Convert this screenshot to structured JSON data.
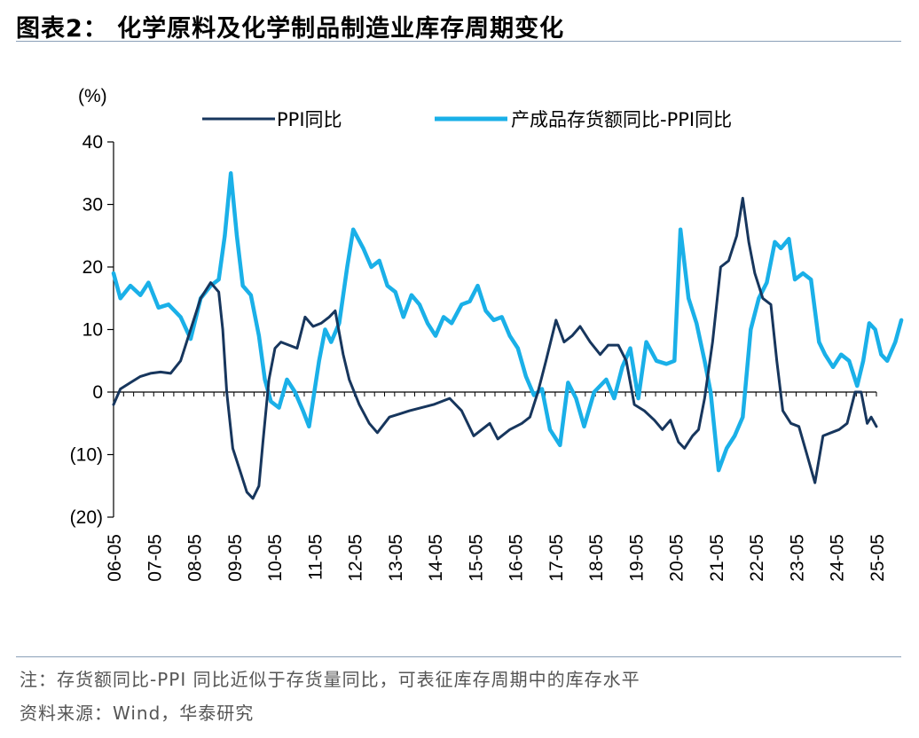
{
  "header": {
    "title": "图表2：  化学原料及化学制品制造业库存周期变化"
  },
  "footer": {
    "note": "注：存货额同比-PPI 同比近似于存货量同比，可表征库存周期中的库存水平",
    "source": "资料来源：Wind，华泰研究"
  },
  "chart_data": {
    "type": "line",
    "unit_label": "(%)",
    "ylim": [
      -20,
      40
    ],
    "yticks": [
      40,
      30,
      20,
      10,
      0,
      -10,
      -20
    ],
    "ytick_labels": [
      "40",
      "30",
      "20",
      "10",
      "0",
      "(10)",
      "(20)"
    ],
    "xlim": [
      2006.33,
      2025.33
    ],
    "xtick_labels": [
      "06-05",
      "07-05",
      "08-05",
      "09-05",
      "10-05",
      "11-05",
      "12-05",
      "13-05",
      "14-05",
      "15-05",
      "16-05",
      "17-05",
      "18-05",
      "19-05",
      "20-05",
      "21-05",
      "22-05",
      "23-05",
      "24-05",
      "25-05"
    ],
    "legend_position": "top",
    "colors": {
      "series1": "#17365d",
      "series2": "#1ab0e8"
    },
    "series": [
      {
        "name": "PPI同比",
        "points": [
          [
            2006.33,
            -2
          ],
          [
            2006.5,
            0.5
          ],
          [
            2006.75,
            1.5
          ],
          [
            2007.0,
            2.5
          ],
          [
            2007.25,
            3
          ],
          [
            2007.5,
            3.2
          ],
          [
            2007.75,
            3
          ],
          [
            2008.0,
            5
          ],
          [
            2008.25,
            10
          ],
          [
            2008.5,
            15
          ],
          [
            2008.75,
            17.5
          ],
          [
            2008.95,
            16
          ],
          [
            2009.05,
            10
          ],
          [
            2009.15,
            0
          ],
          [
            2009.3,
            -9
          ],
          [
            2009.5,
            -13
          ],
          [
            2009.65,
            -16
          ],
          [
            2009.8,
            -17
          ],
          [
            2009.95,
            -15
          ],
          [
            2010.05,
            -8
          ],
          [
            2010.2,
            2
          ],
          [
            2010.35,
            7
          ],
          [
            2010.5,
            8
          ],
          [
            2010.7,
            7.5
          ],
          [
            2010.9,
            7
          ],
          [
            2011.1,
            12
          ],
          [
            2011.3,
            10.5
          ],
          [
            2011.5,
            11
          ],
          [
            2011.7,
            12
          ],
          [
            2011.85,
            13
          ],
          [
            2012.05,
            6
          ],
          [
            2012.2,
            2
          ],
          [
            2012.45,
            -2
          ],
          [
            2012.7,
            -5
          ],
          [
            2012.9,
            -6.5
          ],
          [
            2013.2,
            -4
          ],
          [
            2013.45,
            -3.5
          ],
          [
            2013.7,
            -3
          ],
          [
            2014.0,
            -2.5
          ],
          [
            2014.3,
            -2
          ],
          [
            2014.5,
            -1.5
          ],
          [
            2014.7,
            -1
          ],
          [
            2015.0,
            -3
          ],
          [
            2015.3,
            -7
          ],
          [
            2015.5,
            -6
          ],
          [
            2015.7,
            -5
          ],
          [
            2015.9,
            -7.5
          ],
          [
            2016.2,
            -6
          ],
          [
            2016.5,
            -5
          ],
          [
            2016.7,
            -4
          ],
          [
            2016.9,
            0
          ],
          [
            2017.1,
            5
          ],
          [
            2017.35,
            11.5
          ],
          [
            2017.55,
            8
          ],
          [
            2017.75,
            9
          ],
          [
            2017.95,
            10.5
          ],
          [
            2018.2,
            8
          ],
          [
            2018.45,
            6
          ],
          [
            2018.65,
            7.5
          ],
          [
            2018.9,
            7.5
          ],
          [
            2019.1,
            5
          ],
          [
            2019.3,
            -2
          ],
          [
            2019.55,
            -3
          ],
          [
            2019.8,
            -4.5
          ],
          [
            2020.0,
            -6
          ],
          [
            2020.2,
            -4.5
          ],
          [
            2020.4,
            -8
          ],
          [
            2020.55,
            -9
          ],
          [
            2020.75,
            -7
          ],
          [
            2020.9,
            -6
          ],
          [
            2021.05,
            -1
          ],
          [
            2021.25,
            8
          ],
          [
            2021.45,
            20
          ],
          [
            2021.65,
            21
          ],
          [
            2021.85,
            25
          ],
          [
            2022.0,
            31
          ],
          [
            2022.15,
            24
          ],
          [
            2022.3,
            19
          ],
          [
            2022.5,
            15
          ],
          [
            2022.7,
            14
          ],
          [
            2022.85,
            5
          ],
          [
            2023.0,
            -3
          ],
          [
            2023.2,
            -5
          ],
          [
            2023.4,
            -5.5
          ],
          [
            2023.6,
            -10
          ],
          [
            2023.8,
            -14.5
          ],
          [
            2024.0,
            -7
          ],
          [
            2024.2,
            -6.5
          ],
          [
            2024.4,
            -6
          ],
          [
            2024.6,
            -5
          ],
          [
            2024.8,
            0
          ],
          [
            2024.95,
            0
          ],
          [
            2025.1,
            -5
          ],
          [
            2025.2,
            -4
          ],
          [
            2025.33,
            -5.5
          ]
        ]
      },
      {
        "name": "产成品存货额同比-PPI同比",
        "points": [
          [
            2006.33,
            19
          ],
          [
            2006.5,
            15
          ],
          [
            2006.75,
            17
          ],
          [
            2007.0,
            15.5
          ],
          [
            2007.2,
            17.5
          ],
          [
            2007.45,
            13.5
          ],
          [
            2007.7,
            14
          ],
          [
            2008.0,
            12
          ],
          [
            2008.25,
            8.5
          ],
          [
            2008.5,
            15
          ],
          [
            2008.75,
            17
          ],
          [
            2008.95,
            18
          ],
          [
            2009.1,
            25
          ],
          [
            2009.25,
            35
          ],
          [
            2009.4,
            25
          ],
          [
            2009.55,
            17
          ],
          [
            2009.75,
            15.5
          ],
          [
            2009.95,
            9
          ],
          [
            2010.1,
            2
          ],
          [
            2010.25,
            -1.5
          ],
          [
            2010.45,
            -2.5
          ],
          [
            2010.65,
            2
          ],
          [
            2010.85,
            0
          ],
          [
            2011.05,
            -3
          ],
          [
            2011.2,
            -5.5
          ],
          [
            2011.45,
            5
          ],
          [
            2011.6,
            10
          ],
          [
            2011.75,
            8
          ],
          [
            2011.95,
            11
          ],
          [
            2012.15,
            20
          ],
          [
            2012.3,
            26
          ],
          [
            2012.55,
            23
          ],
          [
            2012.75,
            20
          ],
          [
            2012.95,
            21
          ],
          [
            2013.15,
            17
          ],
          [
            2013.35,
            16
          ],
          [
            2013.55,
            12
          ],
          [
            2013.75,
            15.5
          ],
          [
            2013.95,
            14
          ],
          [
            2014.15,
            11
          ],
          [
            2014.35,
            9
          ],
          [
            2014.55,
            12
          ],
          [
            2014.75,
            11
          ],
          [
            2015.0,
            14
          ],
          [
            2015.2,
            14.5
          ],
          [
            2015.4,
            17
          ],
          [
            2015.6,
            13
          ],
          [
            2015.8,
            11.5
          ],
          [
            2016.0,
            12
          ],
          [
            2016.2,
            9
          ],
          [
            2016.4,
            7
          ],
          [
            2016.6,
            2.5
          ],
          [
            2016.8,
            -0.5
          ],
          [
            2017.0,
            0.5
          ],
          [
            2017.2,
            -6
          ],
          [
            2017.45,
            -8.5
          ],
          [
            2017.65,
            1.5
          ],
          [
            2017.85,
            -1
          ],
          [
            2018.05,
            -5.5
          ],
          [
            2018.3,
            0
          ],
          [
            2018.6,
            2
          ],
          [
            2018.8,
            -1
          ],
          [
            2019.0,
            4
          ],
          [
            2019.2,
            7
          ],
          [
            2019.4,
            -1
          ],
          [
            2019.6,
            8
          ],
          [
            2019.85,
            5
          ],
          [
            2020.1,
            4.5
          ],
          [
            2020.3,
            5
          ],
          [
            2020.45,
            26
          ],
          [
            2020.65,
            15
          ],
          [
            2020.85,
            11
          ],
          [
            2021.05,
            5
          ],
          [
            2021.2,
            0
          ],
          [
            2021.4,
            -12.5
          ],
          [
            2021.6,
            -9
          ],
          [
            2021.8,
            -7
          ],
          [
            2022.0,
            -4
          ],
          [
            2022.2,
            10
          ],
          [
            2022.4,
            15
          ],
          [
            2022.6,
            17.5
          ],
          [
            2022.8,
            24
          ],
          [
            2022.95,
            23
          ],
          [
            2023.15,
            24.5
          ],
          [
            2023.3,
            18
          ],
          [
            2023.5,
            19
          ],
          [
            2023.7,
            18
          ],
          [
            2023.9,
            8
          ],
          [
            2024.05,
            6
          ],
          [
            2024.25,
            4
          ],
          [
            2024.45,
            6
          ],
          [
            2024.65,
            5
          ],
          [
            2024.85,
            1
          ],
          [
            2025.0,
            5
          ],
          [
            2025.15,
            11
          ],
          [
            2025.3,
            10
          ],
          [
            2025.45,
            6
          ],
          [
            2025.6,
            5
          ],
          [
            2025.8,
            8
          ],
          [
            2025.95,
            11.5
          ]
        ]
      }
    ]
  }
}
